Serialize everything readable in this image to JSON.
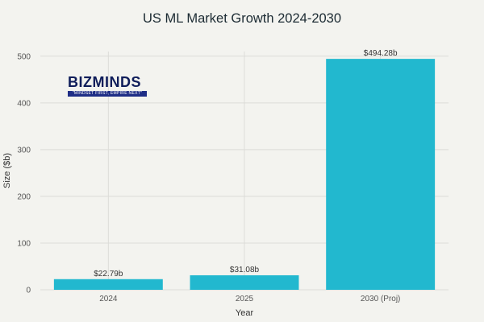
{
  "chart_data": {
    "type": "bar",
    "title": "US ML Market Growth 2024-2030",
    "xlabel": "Year",
    "ylabel": "Size ($b)",
    "categories": [
      "2024",
      "2025",
      "2030 (Proj)"
    ],
    "values": [
      22.79,
      31.08,
      494.28
    ],
    "data_labels": [
      "$22.79b",
      "$31.08b",
      "$494.28b"
    ],
    "ylim": [
      0,
      510
    ],
    "yticks": [
      0,
      100,
      200,
      300,
      400,
      500
    ],
    "grid": true,
    "bar_color": "#22b8cf"
  },
  "logo": {
    "text": "BIZMINDS",
    "tagline": "\"MINDSET FIRST, EMPIRE NEXT\""
  }
}
